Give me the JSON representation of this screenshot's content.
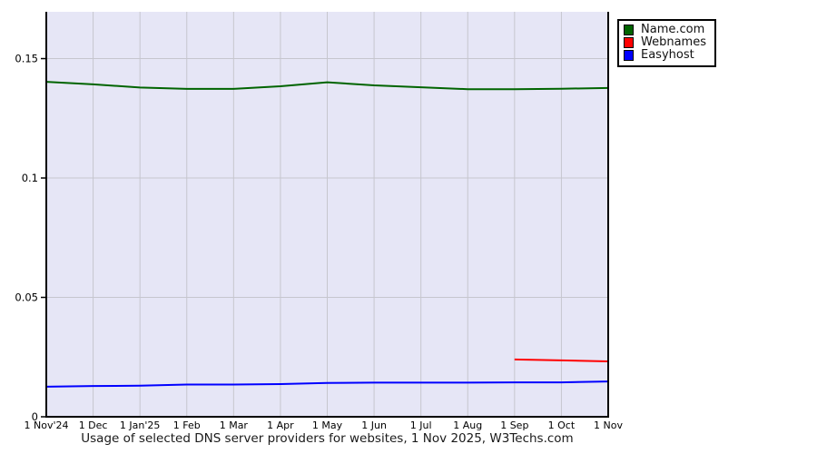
{
  "chart_data": {
    "type": "line",
    "title": "Usage of selected DNS server providers for websites, 1 Nov 2025, W3Techs.com",
    "x_tick_labels": [
      "1 Nov'24",
      "1 Dec",
      "1 Jan'25",
      "1 Feb",
      "1 Mar",
      "1 Apr",
      "1 May",
      "1 Jun",
      "1 Jul",
      "1 Aug",
      "1 Sep",
      "1 Oct",
      "1 Nov"
    ],
    "y_ticks": [
      0,
      0.05,
      0.1,
      0.15
    ],
    "y_tick_labels": [
      "0",
      "0.05",
      "0.1",
      "0.15"
    ],
    "ylim": [
      0,
      0.1696
    ],
    "grid": true,
    "legend_position": "top-right-outside",
    "colors": {
      "plot_background": "#e6e6f6",
      "gridline": "#c6c6ce",
      "axis": "#000000",
      "tick_text": "#000000"
    },
    "series": [
      {
        "name": "Name.com",
        "color": "#006400",
        "values": [
          0.1403,
          0.1392,
          0.1379,
          0.1373,
          0.1373,
          0.1384,
          0.1401,
          0.1388,
          0.138,
          0.1372,
          0.1372,
          0.1374,
          0.1377
        ]
      },
      {
        "name": "Webnames",
        "color": "#ff0000",
        "values": [
          null,
          null,
          null,
          null,
          null,
          null,
          null,
          null,
          null,
          null,
          0.024,
          0.0236,
          0.0232
        ]
      },
      {
        "name": "Easyhost",
        "color": "#0000ff",
        "values": [
          0.0126,
          0.0129,
          0.013,
          0.0135,
          0.0135,
          0.0137,
          0.0142,
          0.0143,
          0.0143,
          0.0143,
          0.0144,
          0.0144,
          0.0148
        ]
      }
    ]
  }
}
